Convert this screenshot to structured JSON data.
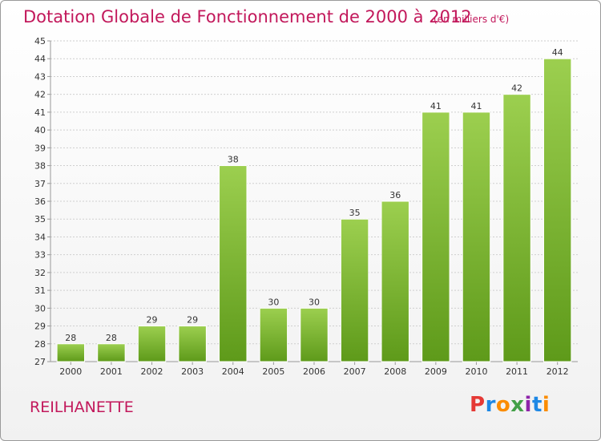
{
  "header": {
    "title": "Dotation Globale de Fonctionnement de 2000 à 2012",
    "subtitle": "(en milliers d'€)"
  },
  "footer": {
    "place": "REILHANETTE",
    "logo_text": "Proxiti",
    "logo_letters": [
      "P",
      "r",
      "o",
      "x",
      "i",
      "t",
      "i"
    ]
  },
  "chart_data": {
    "type": "bar",
    "title": "Dotation Globale de Fonctionnement de 2000 à 2012",
    "subtitle": "(en milliers d'€)",
    "categories": [
      "2000",
      "2001",
      "2002",
      "2003",
      "2004",
      "2005",
      "2006",
      "2007",
      "2008",
      "2009",
      "2010",
      "2011",
      "2012"
    ],
    "values": [
      28,
      28,
      29,
      29,
      38,
      30,
      30,
      35,
      36,
      41,
      41,
      42,
      44
    ],
    "ylim": [
      27,
      45
    ],
    "yticks": [
      27,
      28,
      29,
      30,
      31,
      32,
      33,
      34,
      35,
      36,
      37,
      38,
      39,
      40,
      41,
      42,
      43,
      44,
      45
    ],
    "grid": true,
    "bar_color": "#8cc63f",
    "bar_color_dark": "#5e9a1a"
  }
}
